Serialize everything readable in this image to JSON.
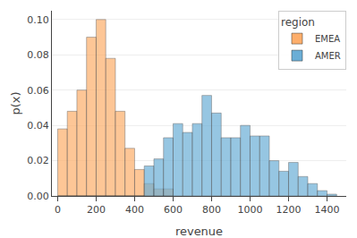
{
  "chart_data": {
    "type": "histogram",
    "xlabel": "revenue",
    "ylabel": "p(x)",
    "legend_title": "region",
    "legend": "upper right",
    "grid": true,
    "xlim": [
      -30,
      1500
    ],
    "ylim": [
      0,
      0.105
    ],
    "xticks": [
      0,
      200,
      400,
      600,
      800,
      1000,
      1200,
      1400
    ],
    "yticks": [
      {
        "value": 0,
        "label": "0.00"
      },
      0.02,
      0.04,
      0.06,
      0.08,
      {
        "value": 0.1,
        "label": "0.10"
      }
    ],
    "series": [
      {
        "name": "EMEA",
        "color": "#fdae6b",
        "bins": [
          0,
          50,
          100,
          150,
          200,
          250,
          300,
          350,
          400,
          450,
          500,
          550,
          600
        ],
        "values": [
          0.038,
          0.048,
          0.06,
          0.09,
          0.1,
          0.078,
          0.048,
          0.027,
          0.015,
          0.007,
          0.004,
          0.004
        ]
      },
      {
        "name": "AMER",
        "color": "#6baed6",
        "bins": [
          0,
          50,
          100,
          150,
          200,
          250,
          300,
          350,
          400,
          450,
          500,
          550,
          600,
          650,
          700,
          750,
          800,
          850,
          900,
          950,
          1000,
          1050,
          1100,
          1150,
          1200,
          1250,
          1300,
          1350,
          1400,
          1450
        ],
        "values": [
          0.0,
          0.0,
          0.0,
          0.0,
          0.0,
          0.0,
          0.0,
          0.0,
          0.0,
          0.017,
          0.021,
          0.033,
          0.041,
          0.036,
          0.041,
          0.057,
          0.047,
          0.033,
          0.033,
          0.04,
          0.034,
          0.034,
          0.02,
          0.014,
          0.019,
          0.011,
          0.007,
          0.003,
          0.001
        ]
      }
    ]
  }
}
